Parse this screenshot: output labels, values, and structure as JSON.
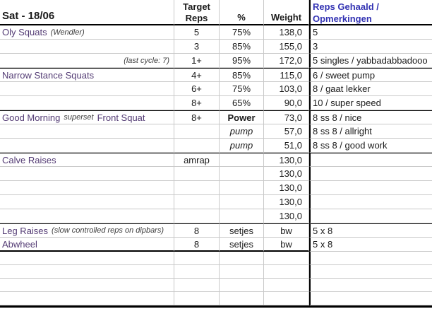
{
  "header": {
    "date_label": "Sat - 18/06",
    "col_target": "Target\nReps",
    "col_pct": "%",
    "col_weight": "Weight",
    "col_comments": "Reps Gehaald /\nOpmerkingen"
  },
  "colors": {
    "header_blue": "#3333b3",
    "exercise_purple": "#533b74",
    "grid_line": "#c9c9c9",
    "text": "#1a1a1a",
    "note_gray": "#3c3c3c",
    "border_black": "#000000"
  },
  "rows": [
    {
      "exercise": "Oly Squats",
      "note": "(Wendler)",
      "target": "5",
      "pct": "75%",
      "weight": "138,0",
      "comment": "5"
    },
    {
      "target": "3",
      "pct": "85%",
      "weight": "155,0",
      "comment": "3"
    },
    {
      "note_right": "(last cycle: 7)",
      "target": "1+",
      "pct": "95%",
      "weight": "172,0",
      "comment": "5 singles / yabbadabbadooo"
    },
    {
      "exercise": "Narrow Stance Squats",
      "target": "4+",
      "pct": "85%",
      "weight": "115,0",
      "comment": "6 / sweet pump",
      "section_start": true
    },
    {
      "target": "6+",
      "pct": "75%",
      "weight": "103,0",
      "comment": "8 / gaat lekker"
    },
    {
      "target": "8+",
      "pct": "65%",
      "weight": "90,0",
      "comment": "10 / super speed"
    },
    {
      "exercise": "Good Morning",
      "note": "superset",
      "exercise2": "Front Squat",
      "target": "8+",
      "pct": "Power",
      "pct_bold": true,
      "weight": "73,0",
      "comment": "8 ss 8 / nice",
      "section_start": true
    },
    {
      "pct": "pump",
      "pct_italic": true,
      "weight": "57,0",
      "comment": "8 ss 8 / allright"
    },
    {
      "pct": "pump",
      "pct_italic": true,
      "weight": "51,0",
      "comment": "8 ss 8 / good work"
    },
    {
      "exercise": "Calve Raises",
      "target": "amrap",
      "weight": "130,0",
      "section_start": true
    },
    {
      "weight": "130,0"
    },
    {
      "weight": "130,0"
    },
    {
      "weight": "130,0"
    },
    {
      "weight": "130,0"
    },
    {
      "exercise": "Leg Raises",
      "note": "(slow controlled reps on dipbars)",
      "target": "8",
      "pct": "setjes",
      "weight": "bw",
      "weight_center": true,
      "comment": "5 x 8",
      "section_start": true
    },
    {
      "exercise": "Abwheel",
      "target": "8",
      "pct": "setjes",
      "weight": "bw",
      "weight_center": true,
      "comment": "5 x 8",
      "thick_bottom": true
    }
  ],
  "empty_rows": 4
}
